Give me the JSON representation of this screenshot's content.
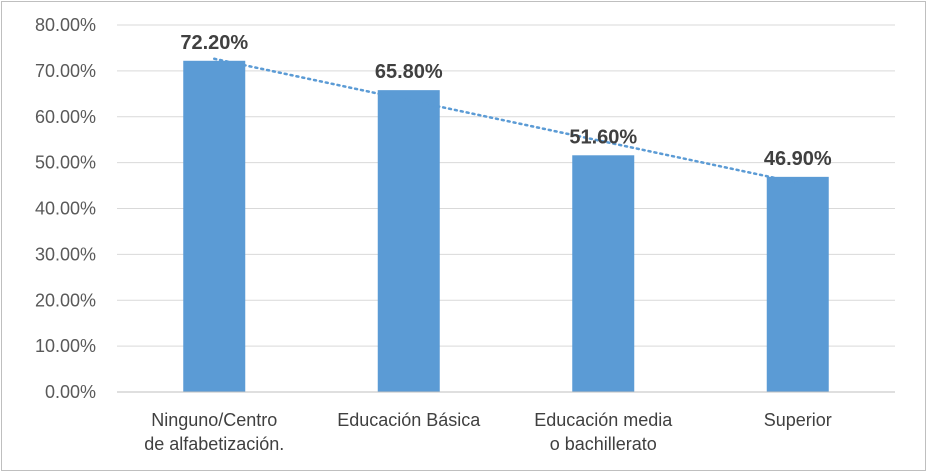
{
  "chart_data": {
    "type": "bar",
    "categories": [
      [
        "Ninguno/Centro",
        "de alfabetización."
      ],
      [
        "Educación Básica"
      ],
      [
        "Educación media",
        "o bachillerato"
      ],
      [
        "Superior"
      ]
    ],
    "values": [
      72.2,
      65.8,
      51.6,
      46.9
    ],
    "data_labels": [
      "72.20%",
      "65.80%",
      "51.60%",
      "46.90%"
    ],
    "ylim": [
      0,
      80
    ],
    "yticks": [
      "0.00%",
      "10.00%",
      "20.00%",
      "30.00%",
      "40.00%",
      "50.00%",
      "60.00%",
      "70.00%",
      "80.00%"
    ],
    "trendline": {
      "type": "linear",
      "style": "dotted"
    },
    "grid": true,
    "legend": false,
    "colors": {
      "bar": "#5b9bd5",
      "trend": "#5b9bd5",
      "grid": "#d9d9d9",
      "axis": "#bfbfbf"
    }
  }
}
